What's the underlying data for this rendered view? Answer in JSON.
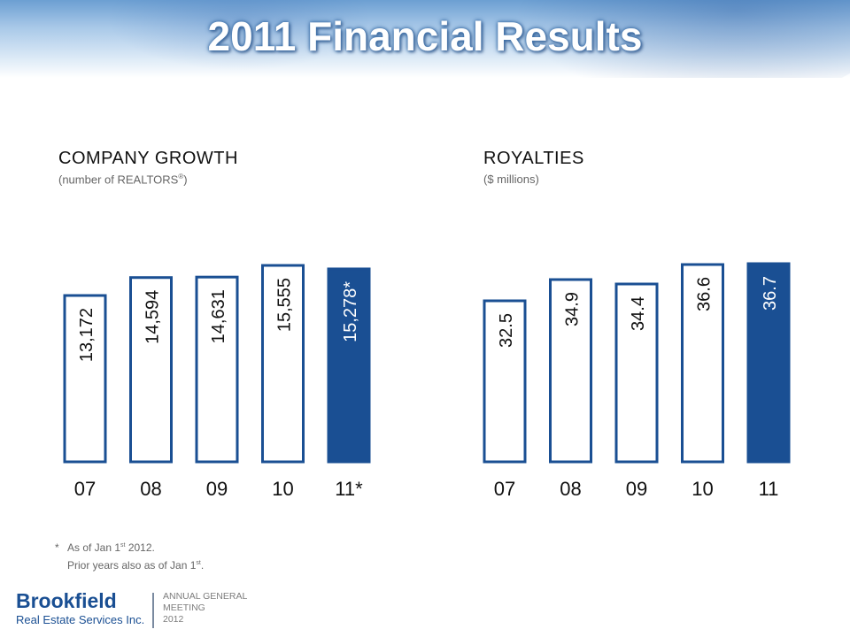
{
  "title": "2011 Financial Results",
  "chart_data": [
    {
      "type": "bar",
      "title": "COMPANY GROWTH",
      "subtitle_main": "(number of REALTORS",
      "subtitle_sup": "®",
      "subtitle_end": ")",
      "categories": [
        "07",
        "08",
        "09",
        "10",
        "11*"
      ],
      "values": [
        13172,
        14594,
        14631,
        15555,
        15278
      ],
      "value_labels": [
        "13,172",
        "14,594",
        "14,631",
        "15,555",
        "15,278*"
      ],
      "highlight_index": 4,
      "colors": {
        "outline": "#1a4f93",
        "highlight": "#1a4f93",
        "fill": "#ffffff"
      }
    },
    {
      "type": "bar",
      "title": "ROYALTIES",
      "subtitle": "($ millions)",
      "categories": [
        "07",
        "08",
        "09",
        "10",
        "11"
      ],
      "values": [
        32.5,
        34.9,
        34.4,
        36.6,
        36.7
      ],
      "value_labels": [
        "32.5",
        "34.9",
        "34.4",
        "36.6",
        "36.7"
      ],
      "highlight_index": 4,
      "colors": {
        "outline": "#1a4f93",
        "highlight": "#1a4f93",
        "fill": "#ffffff"
      }
    }
  ],
  "footnote": {
    "star": "*",
    "line1_pre": "As of Jan 1",
    "line1_sup": "st",
    "line1_post": " 2012.",
    "line2_pre": "Prior years also as of Jan 1",
    "line2_sup": "st",
    "line2_post": "."
  },
  "logo": {
    "brand": "Brookfield",
    "brand_sub": "Real Estate Services Inc.",
    "meeting_line1": "ANNUAL GENERAL",
    "meeting_line2": "MEETING",
    "meeting_line3": "2012"
  }
}
